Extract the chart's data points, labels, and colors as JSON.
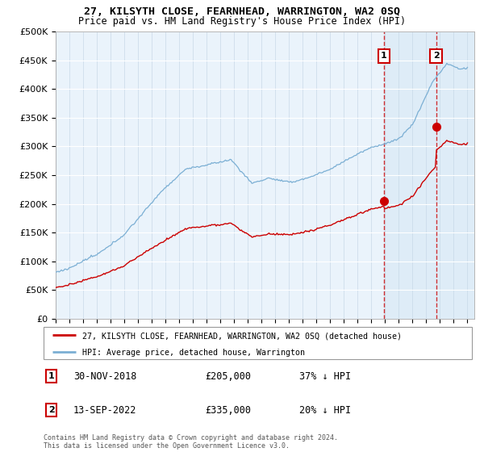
{
  "title": "27, KILSYTH CLOSE, FEARNHEAD, WARRINGTON, WA2 0SQ",
  "subtitle": "Price paid vs. HM Land Registry's House Price Index (HPI)",
  "ylabel_ticks": [
    "£0",
    "£50K",
    "£100K",
    "£150K",
    "£200K",
    "£250K",
    "£300K",
    "£350K",
    "£400K",
    "£450K",
    "£500K"
  ],
  "ytick_vals": [
    0,
    50000,
    100000,
    150000,
    200000,
    250000,
    300000,
    350000,
    400000,
    450000,
    500000
  ],
  "ylim": [
    0,
    500000
  ],
  "xlim_start": 1995.0,
  "xlim_end": 2025.5,
  "hpi_color": "#7bafd4",
  "hpi_fill_color": "#d6e8f5",
  "property_color": "#cc0000",
  "background_color": "#eaf3fb",
  "sale1_date": 2018.92,
  "sale1_price": 205000,
  "sale2_date": 2022.71,
  "sale2_price": 335000,
  "legend_line1": "27, KILSYTH CLOSE, FEARNHEAD, WARRINGTON, WA2 0SQ (detached house)",
  "legend_line2": "HPI: Average price, detached house, Warrington",
  "copyright": "Contains HM Land Registry data © Crown copyright and database right 2024.\nThis data is licensed under the Open Government Licence v3.0."
}
